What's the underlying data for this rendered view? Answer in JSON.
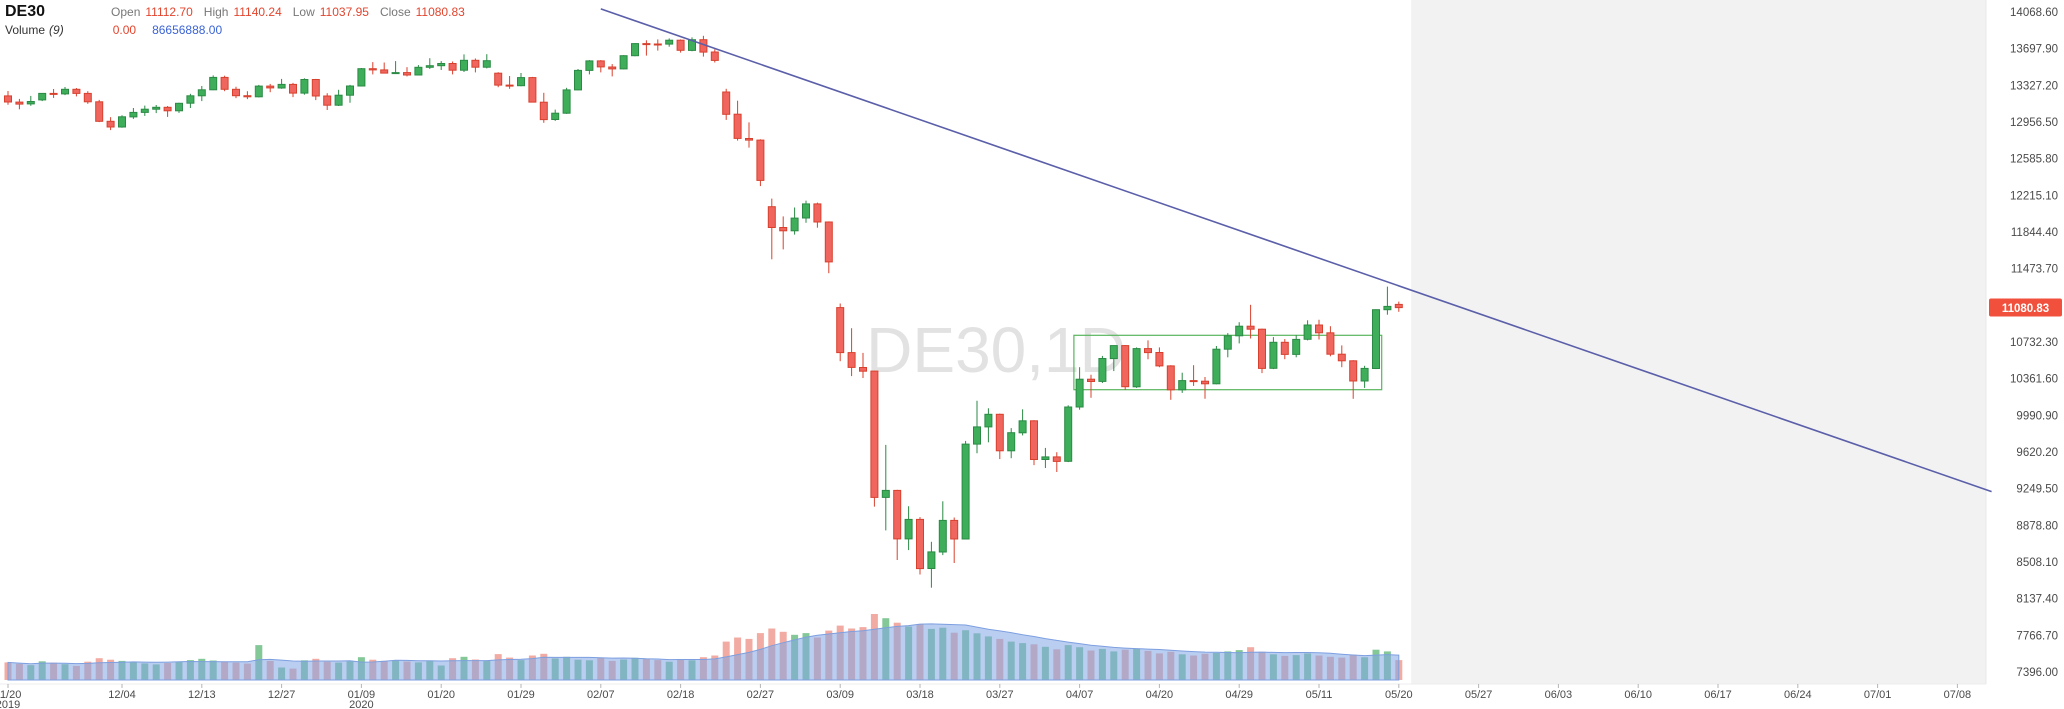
{
  "header": {
    "symbol": "DE30",
    "ohlc": {
      "open_label": "Open",
      "open": "11112.70",
      "high_label": "High",
      "high": "11140.24",
      "low_label": "Low",
      "low": "11037.95",
      "close_label": "Close",
      "close": "11080.83"
    },
    "volume_row": {
      "label": "Volume",
      "param": "(9)",
      "value1": "0.00",
      "value2": "86656888.00"
    }
  },
  "colors": {
    "up": "#3fae5a",
    "up_border": "#2a8a44",
    "down": "#f0665e",
    "down_border": "#d8402e",
    "vol_up": "#6fbf87",
    "vol_down": "#f09d92",
    "vol_ma_fill": "rgba(130,165,230,0.55)",
    "vol_ma_line": "#7d9fe0",
    "trendline": "#5b5fa9",
    "box": "#57b55c",
    "price_tag_bg": "#f1503c",
    "axis_text": "#4a4a4a",
    "watermark": "#e2e2e2",
    "future_bg": "#f2f2f2"
  },
  "chart_data": {
    "type": "candlestick",
    "symbol": "DE30",
    "timeframe": "1D",
    "watermark": "DE30,1D",
    "current_price": "11080.83",
    "ylim": [
      7396.0,
      14068.6
    ],
    "y_axis": {
      "ticks": [
        "14068.60",
        "13697.90",
        "13327.20",
        "12956.50",
        "12585.80",
        "12215.10",
        "11844.40",
        "11473.70",
        "10732.30",
        "10361.60",
        "9990.90",
        "9620.20",
        "9249.50",
        "8878.80",
        "8508.10",
        "8137.40",
        "7766.70",
        "7396.00"
      ]
    },
    "x_axis": {
      "ticks": [
        {
          "label": "11/20",
          "sub": "2019",
          "index": 0
        },
        {
          "label": "12/04",
          "index": 10
        },
        {
          "label": "12/13",
          "index": 17
        },
        {
          "label": "12/27",
          "index": 24
        },
        {
          "label": "01/09",
          "sub": "2020",
          "index": 31
        },
        {
          "label": "01/20",
          "index": 38
        },
        {
          "label": "01/29",
          "index": 45
        },
        {
          "label": "02/07",
          "index": 52
        },
        {
          "label": "02/18",
          "index": 59
        },
        {
          "label": "02/27",
          "index": 66
        },
        {
          "label": "03/09",
          "index": 73
        },
        {
          "label": "03/18",
          "index": 80
        },
        {
          "label": "03/27",
          "index": 87
        },
        {
          "label": "04/07",
          "index": 94
        },
        {
          "label": "04/20",
          "index": 101
        },
        {
          "label": "04/29",
          "index": 108
        },
        {
          "label": "05/11",
          "index": 115
        },
        {
          "label": "05/20",
          "index": 122
        },
        {
          "label": "05/27",
          "index": 129
        },
        {
          "label": "06/03",
          "index": 136
        },
        {
          "label": "06/10",
          "index": 143
        },
        {
          "label": "06/17",
          "index": 150
        },
        {
          "label": "06/24",
          "index": 157
        },
        {
          "label": "07/01",
          "index": 164
        },
        {
          "label": "07/08",
          "index": 171
        }
      ]
    },
    "overlays": {
      "trendline": {
        "from": {
          "index": 52,
          "price": 14100
        },
        "to": {
          "index": 174,
          "price": 9220
        }
      },
      "box": {
        "from_index": 93.5,
        "to_index": 120.5,
        "top": 10800,
        "bottom": 10250
      }
    },
    "columns": [
      "date",
      "open",
      "high",
      "low",
      "close",
      "volume_m"
    ],
    "candles": [
      [
        "11/20",
        13220,
        13270,
        13130,
        13158,
        85
      ],
      [
        "11/21",
        13158,
        13190,
        13085,
        13138,
        78
      ],
      [
        "11/22",
        13140,
        13220,
        13120,
        13164,
        72
      ],
      [
        "11/25",
        13180,
        13250,
        13168,
        13246,
        90
      ],
      [
        "11/26",
        13246,
        13290,
        13200,
        13236,
        83
      ],
      [
        "11/27",
        13240,
        13310,
        13228,
        13287,
        76
      ],
      [
        "11/28",
        13287,
        13300,
        13215,
        13246,
        68
      ],
      [
        "11/29",
        13246,
        13268,
        13140,
        13161,
        88
      ],
      [
        "12/02",
        13161,
        13180,
        12955,
        12964,
        105
      ],
      [
        "12/03",
        12964,
        13005,
        12875,
        12906,
        98
      ],
      [
        "12/04",
        12906,
        13025,
        12898,
        13009,
        92
      ],
      [
        "12/05",
        13009,
        13098,
        12988,
        13054,
        87
      ],
      [
        "12/06",
        13054,
        13122,
        13018,
        13086,
        80
      ],
      [
        "12/09",
        13086,
        13128,
        13046,
        13105,
        75
      ],
      [
        "12/10",
        13105,
        13118,
        13008,
        13070,
        82
      ],
      [
        "12/11",
        13070,
        13152,
        13048,
        13146,
        88
      ],
      [
        "12/12",
        13146,
        13242,
        13098,
        13221,
        96
      ],
      [
        "12/13",
        13221,
        13320,
        13168,
        13282,
        102
      ],
      [
        "12/16",
        13282,
        13428,
        13278,
        13407,
        94
      ],
      [
        "12/17",
        13407,
        13425,
        13268,
        13287,
        89
      ],
      [
        "12/18",
        13287,
        13312,
        13198,
        13222,
        84
      ],
      [
        "12/19",
        13222,
        13268,
        13188,
        13211,
        79
      ],
      [
        "12/20",
        13211,
        13332,
        13205,
        13319,
        168
      ],
      [
        "12/23",
        13319,
        13342,
        13258,
        13301,
        92
      ],
      [
        "12/27",
        13301,
        13392,
        13292,
        13337,
        60
      ],
      [
        "12/30",
        13337,
        13352,
        13208,
        13249,
        55
      ],
      [
        "01/02",
        13249,
        13398,
        13232,
        13386,
        95
      ],
      [
        "01/03",
        13386,
        13392,
        13178,
        13219,
        102
      ],
      [
        "01/06",
        13219,
        13248,
        13078,
        13126,
        88
      ],
      [
        "01/07",
        13126,
        13282,
        13118,
        13227,
        84
      ],
      [
        "01/08",
        13227,
        13332,
        13152,
        13320,
        90
      ],
      [
        "01/09",
        13320,
        13502,
        13318,
        13495,
        110
      ],
      [
        "01/10",
        13495,
        13562,
        13438,
        13483,
        98
      ],
      [
        "01/13",
        13483,
        13558,
        13452,
        13451,
        92
      ],
      [
        "01/14",
        13451,
        13572,
        13442,
        13456,
        96
      ],
      [
        "01/15",
        13456,
        13512,
        13418,
        13432,
        89
      ],
      [
        "01/16",
        13432,
        13532,
        13428,
        13510,
        85
      ],
      [
        "01/17",
        13510,
        13602,
        13492,
        13526,
        93
      ],
      [
        "01/20",
        13526,
        13572,
        13482,
        13548,
        70
      ],
      [
        "01/21",
        13548,
        13568,
        13438,
        13480,
        105
      ],
      [
        "01/22",
        13480,
        13640,
        13462,
        13580,
        112
      ],
      [
        "01/23",
        13580,
        13598,
        13458,
        13510,
        99
      ],
      [
        "01/24",
        13510,
        13642,
        13498,
        13576,
        94
      ],
      [
        "01/27",
        13450,
        13460,
        13308,
        13330,
        125
      ],
      [
        "01/28",
        13330,
        13422,
        13292,
        13323,
        108
      ],
      [
        "01/29",
        13323,
        13452,
        13318,
        13405,
        96
      ],
      [
        "01/30",
        13405,
        13412,
        13168,
        13157,
        118
      ],
      [
        "01/31",
        13157,
        13252,
        12948,
        12981,
        126
      ],
      [
        "02/03",
        12981,
        13082,
        12968,
        13045,
        104
      ],
      [
        "02/04",
        13045,
        13302,
        13038,
        13281,
        112
      ],
      [
        "02/05",
        13281,
        13492,
        13278,
        13478,
        98
      ],
      [
        "02/06",
        13478,
        13582,
        13438,
        13574,
        95
      ],
      [
        "02/07",
        13574,
        13582,
        13458,
        13513,
        108
      ],
      [
        "02/10",
        13513,
        13542,
        13418,
        13494,
        92
      ],
      [
        "02/11",
        13494,
        13632,
        13488,
        13627,
        99
      ],
      [
        "02/12",
        13627,
        13752,
        13622,
        13749,
        107
      ],
      [
        "02/13",
        13749,
        13782,
        13628,
        13745,
        103
      ],
      [
        "02/14",
        13745,
        13792,
        13678,
        13744,
        96
      ],
      [
        "02/17",
        13744,
        13802,
        13718,
        13783,
        88
      ],
      [
        "02/18",
        13783,
        13792,
        13658,
        13681,
        101
      ],
      [
        "02/19",
        13681,
        13812,
        13672,
        13789,
        95
      ],
      [
        "02/20",
        13789,
        13828,
        13618,
        13664,
        110
      ],
      [
        "02/21",
        13664,
        13692,
        13558,
        13579,
        118
      ],
      [
        "02/24",
        13260,
        13292,
        12978,
        13035,
        185
      ],
      [
        "02/25",
        13035,
        13172,
        12768,
        12790,
        205
      ],
      [
        "02/26",
        12790,
        12952,
        12698,
        12774,
        198
      ],
      [
        "02/27",
        12774,
        12782,
        12308,
        12367,
        226
      ],
      [
        "02/28",
        12100,
        12182,
        11568,
        11890,
        248
      ],
      [
        "03/02",
        11890,
        12002,
        11668,
        11857,
        232
      ],
      [
        "03/03",
        11857,
        12092,
        11818,
        11985,
        218
      ],
      [
        "03/04",
        11985,
        12162,
        11938,
        12128,
        226
      ],
      [
        "03/05",
        12128,
        12142,
        11888,
        11945,
        205
      ],
      [
        "03/06",
        11945,
        11952,
        11428,
        11542,
        238
      ],
      [
        "03/09",
        11080,
        11122,
        10538,
        10625,
        262
      ],
      [
        "03/10",
        10625,
        10872,
        10388,
        10475,
        248
      ],
      [
        "03/11",
        10475,
        10622,
        10368,
        10438,
        255
      ],
      [
        "03/12",
        10438,
        10442,
        9068,
        9161,
        318
      ],
      [
        "03/13",
        9161,
        9692,
        8828,
        9232,
        298
      ],
      [
        "03/16",
        9232,
        9238,
        8528,
        8742,
        276
      ],
      [
        "03/17",
        8742,
        9072,
        8628,
        8939,
        258
      ],
      [
        "03/18",
        8939,
        8962,
        8382,
        8442,
        270
      ],
      [
        "03/19",
        8442,
        8712,
        8248,
        8610,
        246
      ],
      [
        "03/20",
        8610,
        9122,
        8578,
        8929,
        252
      ],
      [
        "03/23",
        8929,
        8958,
        8498,
        8741,
        228
      ],
      [
        "03/24",
        8741,
        9732,
        8738,
        9700,
        240
      ],
      [
        "03/25",
        9700,
        10138,
        9608,
        9874,
        225
      ],
      [
        "03/26",
        9874,
        10062,
        9718,
        10001,
        210
      ],
      [
        "03/27",
        10001,
        10008,
        9548,
        9632,
        198
      ],
      [
        "03/30",
        9632,
        9862,
        9558,
        9815,
        185
      ],
      [
        "03/31",
        9815,
        10052,
        9788,
        9936,
        178
      ],
      [
        "04/01",
        9936,
        9942,
        9488,
        9545,
        172
      ],
      [
        "04/02",
        9545,
        9662,
        9458,
        9571,
        160
      ],
      [
        "04/03",
        9571,
        9618,
        9418,
        9526,
        148
      ],
      [
        "04/06",
        9526,
        10092,
        9518,
        10075,
        168
      ],
      [
        "04/07",
        10075,
        10478,
        10048,
        10356,
        158
      ],
      [
        "04/08",
        10356,
        10402,
        10168,
        10333,
        142
      ],
      [
        "04/09",
        10333,
        10592,
        10318,
        10565,
        150
      ],
      [
        "04/14",
        10565,
        10698,
        10438,
        10696,
        138
      ],
      [
        "04/15",
        10696,
        10702,
        10248,
        10280,
        146
      ],
      [
        "04/16",
        10280,
        10678,
        10268,
        10666,
        152
      ],
      [
        "04/17",
        10666,
        10748,
        10558,
        10626,
        140
      ],
      [
        "04/20",
        10626,
        10678,
        10478,
        10491,
        128
      ],
      [
        "04/21",
        10491,
        10498,
        10148,
        10249,
        136
      ],
      [
        "04/22",
        10249,
        10422,
        10218,
        10342,
        124
      ],
      [
        "04/23",
        10342,
        10498,
        10288,
        10336,
        118
      ],
      [
        "04/24",
        10336,
        10378,
        10158,
        10310,
        126
      ],
      [
        "04/27",
        10310,
        10692,
        10305,
        10660,
        130
      ],
      [
        "04/28",
        10660,
        10822,
        10578,
        10795,
        138
      ],
      [
        "04/29",
        10795,
        10932,
        10718,
        10892,
        144
      ],
      [
        "04/30",
        10892,
        11108,
        10768,
        10862,
        158
      ],
      [
        "05/04",
        10862,
        10868,
        10418,
        10466,
        136
      ],
      [
        "05/05",
        10466,
        10782,
        10458,
        10729,
        124
      ],
      [
        "05/06",
        10729,
        10762,
        10558,
        10607,
        116
      ],
      [
        "05/07",
        10607,
        10802,
        10578,
        10759,
        120
      ],
      [
        "05/08",
        10759,
        10952,
        10748,
        10904,
        128
      ],
      [
        "05/11",
        10904,
        10958,
        10758,
        10825,
        118
      ],
      [
        "05/12",
        10825,
        10892,
        10588,
        10609,
        112
      ],
      [
        "05/13",
        10609,
        10698,
        10478,
        10542,
        108
      ],
      [
        "05/14",
        10542,
        10548,
        10158,
        10338,
        122
      ],
      [
        "05/15",
        10338,
        10492,
        10268,
        10465,
        110
      ],
      [
        "05/18",
        10465,
        11062,
        10458,
        11059,
        146
      ],
      [
        "05/19",
        11059,
        11292,
        11008,
        11092,
        138
      ],
      [
        "05/20",
        11112.7,
        11140.24,
        11037.95,
        11080.83,
        96
      ]
    ]
  }
}
